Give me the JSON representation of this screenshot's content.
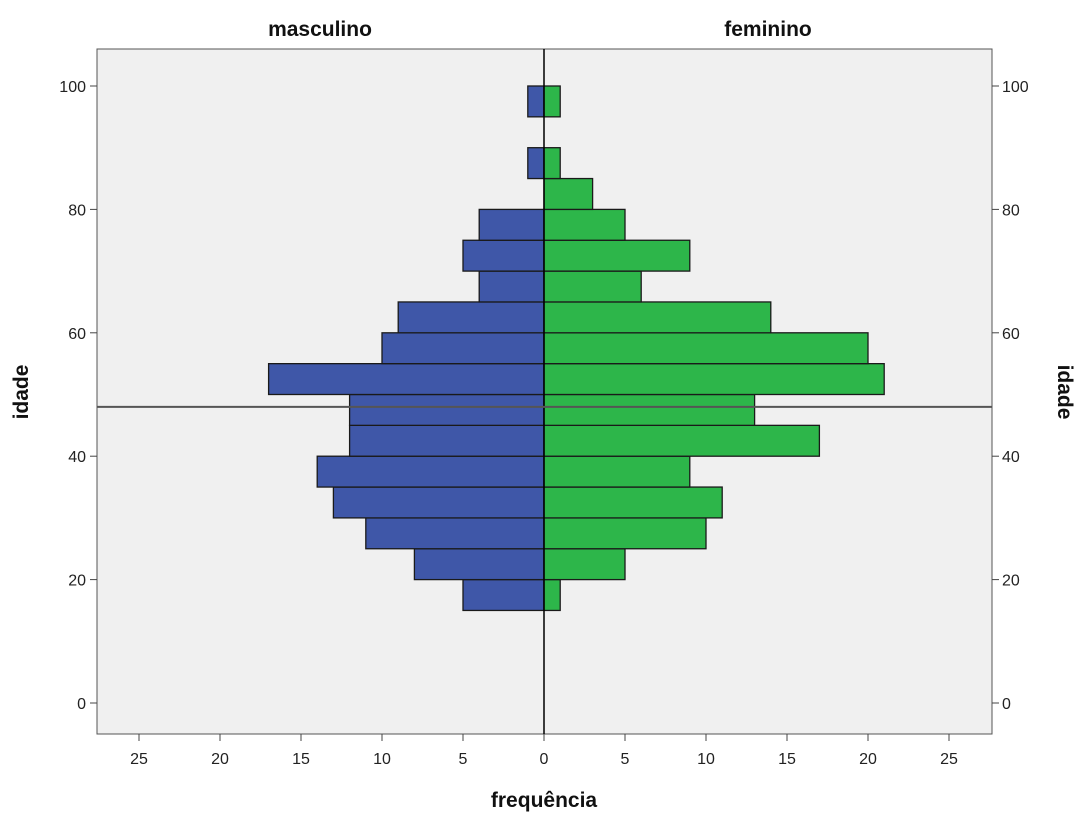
{
  "chart_data": {
    "type": "bar",
    "orientation": "horizontal-population-pyramid",
    "panels": [
      {
        "name": "masculino",
        "color": "#3f57a8",
        "side": "left"
      },
      {
        "name": "feminino",
        "color": "#2db64a",
        "side": "right"
      }
    ],
    "titles": {
      "left": "masculino",
      "right": "feminino"
    },
    "xlabel": "frequência",
    "ylabel_left": "idade",
    "ylabel_right": "idade",
    "x_ticks": [
      25,
      20,
      15,
      10,
      5,
      0,
      5,
      10,
      15,
      20,
      25
    ],
    "x_range": [
      0,
      27.5
    ],
    "y_ticks": [
      0,
      20,
      40,
      60,
      80,
      100
    ],
    "y_range": [
      -5,
      105
    ],
    "bin_width": 5,
    "bins": [
      {
        "from": 15,
        "to": 20,
        "masculino": 5,
        "feminino": 1
      },
      {
        "from": 20,
        "to": 25,
        "masculino": 8,
        "feminino": 5
      },
      {
        "from": 25,
        "to": 30,
        "masculino": 11,
        "feminino": 10
      },
      {
        "from": 30,
        "to": 35,
        "masculino": 13,
        "feminino": 11
      },
      {
        "from": 35,
        "to": 40,
        "masculino": 14,
        "feminino": 9
      },
      {
        "from": 40,
        "to": 45,
        "masculino": 12,
        "feminino": 17
      },
      {
        "from": 45,
        "to": 50,
        "masculino": 12,
        "feminino": 13
      },
      {
        "from": 50,
        "to": 55,
        "masculino": 17,
        "feminino": 21
      },
      {
        "from": 55,
        "to": 60,
        "masculino": 10,
        "feminino": 20
      },
      {
        "from": 60,
        "to": 65,
        "masculino": 9,
        "feminino": 14
      },
      {
        "from": 65,
        "to": 70,
        "masculino": 4,
        "feminino": 6
      },
      {
        "from": 70,
        "to": 75,
        "masculino": 5,
        "feminino": 9
      },
      {
        "from": 75,
        "to": 80,
        "masculino": 4,
        "feminino": 5
      },
      {
        "from": 80,
        "to": 85,
        "masculino": 0,
        "feminino": 3
      },
      {
        "from": 85,
        "to": 90,
        "masculino": 1,
        "feminino": 1
      },
      {
        "from": 90,
        "to": 95,
        "masculino": 0,
        "feminino": 0
      },
      {
        "from": 95,
        "to": 100,
        "masculino": 1,
        "feminino": 1
      }
    ],
    "reference_line_y": 48,
    "grid": false,
    "legend": "none",
    "colors": {
      "plot_background": "#f0f0f0",
      "bar_outline": "#1a1a1a",
      "axis": "#444444"
    }
  }
}
